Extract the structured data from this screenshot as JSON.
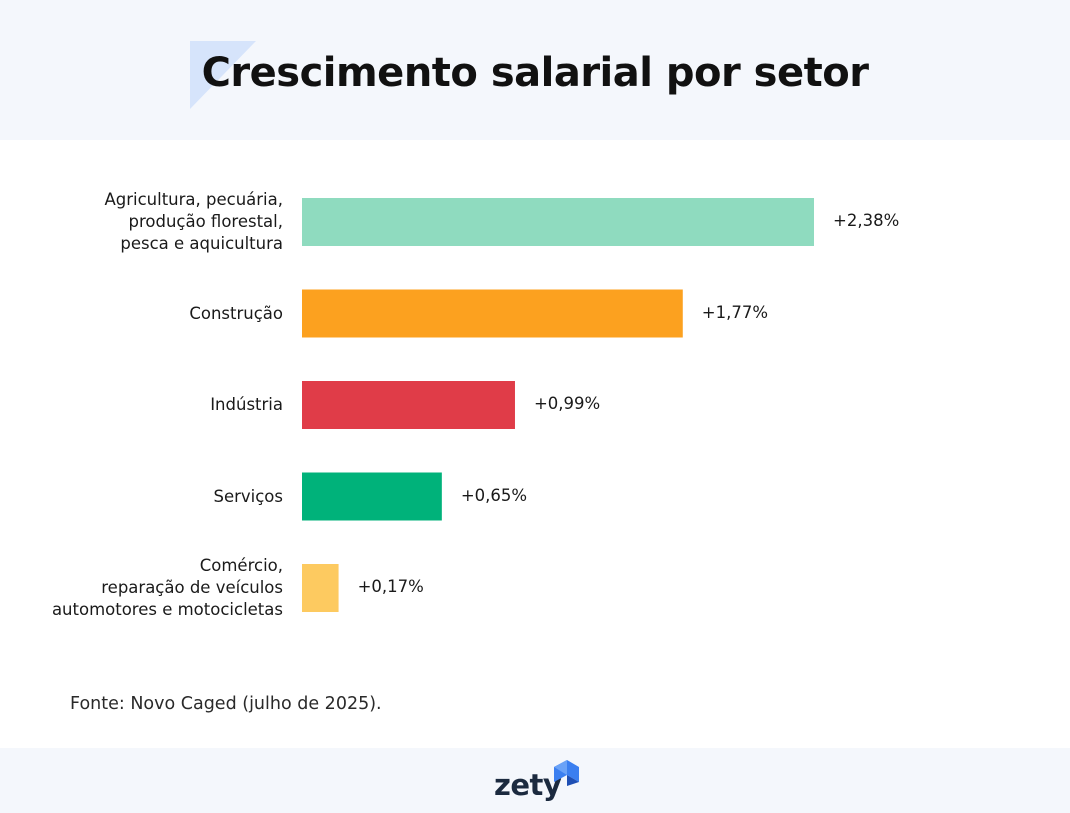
{
  "header": {
    "title": "Crescimento salarial por setor"
  },
  "colors": {
    "background": "#ffffff",
    "header_bg": "#f4f7fc",
    "accent_shape": "#d6e4fb",
    "brand_blue": "#3b7ff0"
  },
  "chart_data": {
    "type": "bar",
    "orientation": "horizontal",
    "title": "Crescimento salarial por setor",
    "xlabel": "",
    "ylabel": "",
    "grid": false,
    "xlim": [
      0,
      2.5
    ],
    "categories": [
      "Agricultura, pecuária,\nprodução florestal,\npesca e aquicultura",
      "Construção",
      "Indústria",
      "Serviços",
      "Comércio,\nreparação de veículos\nautomotores e motocicletas"
    ],
    "values": [
      2.38,
      1.77,
      0.99,
      0.65,
      0.17
    ],
    "data_labels": [
      "+2,38%",
      "+1,77%",
      "+0,99%",
      "+0,65%",
      "+0,17%"
    ],
    "bar_colors": [
      "#8fdbbf",
      "#fca11f",
      "#e03c48",
      "#00b27a",
      "#fdca60"
    ]
  },
  "footer": {
    "source": "Fonte: Novo Caged (julho de 2025).",
    "brand": "zety",
    "brand_icon": "zety-logo-icon"
  }
}
